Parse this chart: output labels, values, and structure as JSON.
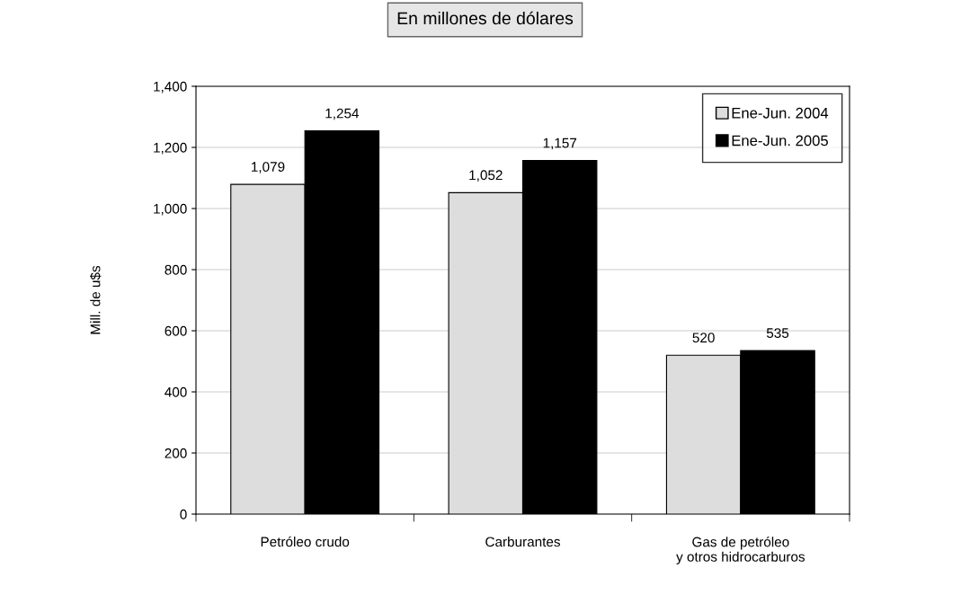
{
  "chart_data": {
    "type": "bar",
    "title": "En millones de dólares",
    "ylabel": "Mill. de u$s",
    "categories": [
      "Petróleo crudo",
      "Carburantes",
      "Gas de petróleo\ny otros hidrocarburos"
    ],
    "series": [
      {
        "name": "Ene-Jun. 2004",
        "color": "#dddddd",
        "values": [
          1079,
          1052,
          520
        ],
        "value_labels": [
          "1,079",
          "1,052",
          "520"
        ]
      },
      {
        "name": "Ene-Jun. 2005",
        "color": "#000000",
        "values": [
          1254,
          1157,
          535
        ],
        "value_labels": [
          "1,254",
          "1,157",
          "535"
        ]
      }
    ],
    "ylim": [
      0,
      1400
    ],
    "yticks": [
      0,
      200,
      400,
      600,
      800,
      {
        "value": 1000,
        "label": "1,000"
      },
      {
        "value": 1200,
        "label": "1,200"
      },
      {
        "value": 1400,
        "label": "1,400"
      }
    ],
    "grid": "y",
    "legend": "top right"
  }
}
